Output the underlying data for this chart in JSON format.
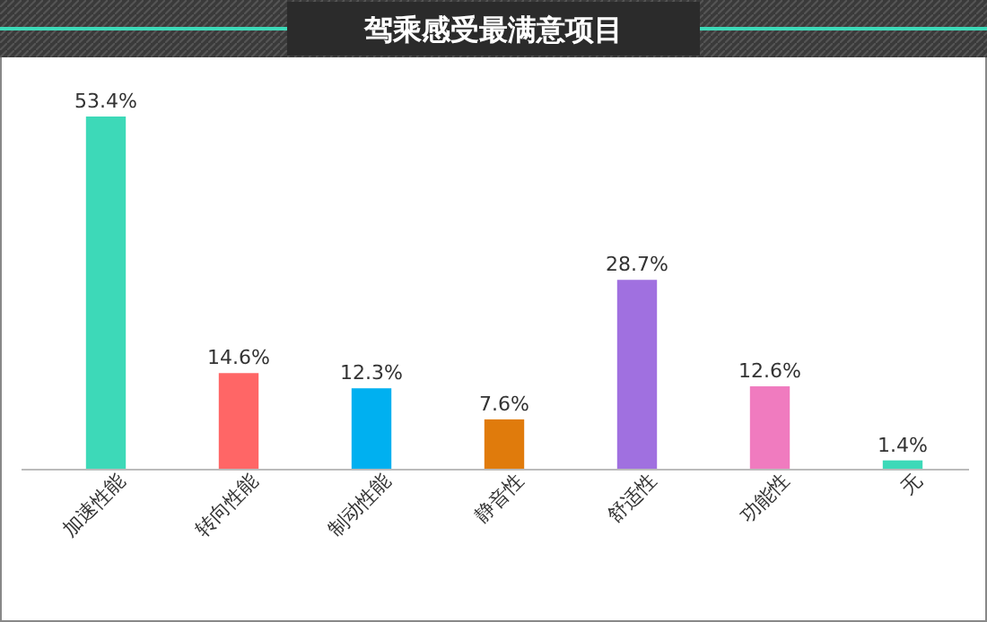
{
  "chart_data": {
    "type": "bar",
    "title": "驾乘感受最满意项目",
    "categories": [
      "加速性能",
      "转向性能",
      "制动性能",
      "静音性",
      "舒适性",
      "功能性",
      "无"
    ],
    "values": [
      53.4,
      14.6,
      12.3,
      7.6,
      28.7,
      12.6,
      1.4
    ],
    "value_labels": [
      "53.4%",
      "14.6%",
      "12.3%",
      "7.6%",
      "28.7%",
      "12.6%",
      "1.4%"
    ],
    "colors": [
      "#3dd9b8",
      "#ff6666",
      "#00b0f0",
      "#e07b0c",
      "#a070e0",
      "#f07bbf",
      "#3dd9b8"
    ]
  }
}
